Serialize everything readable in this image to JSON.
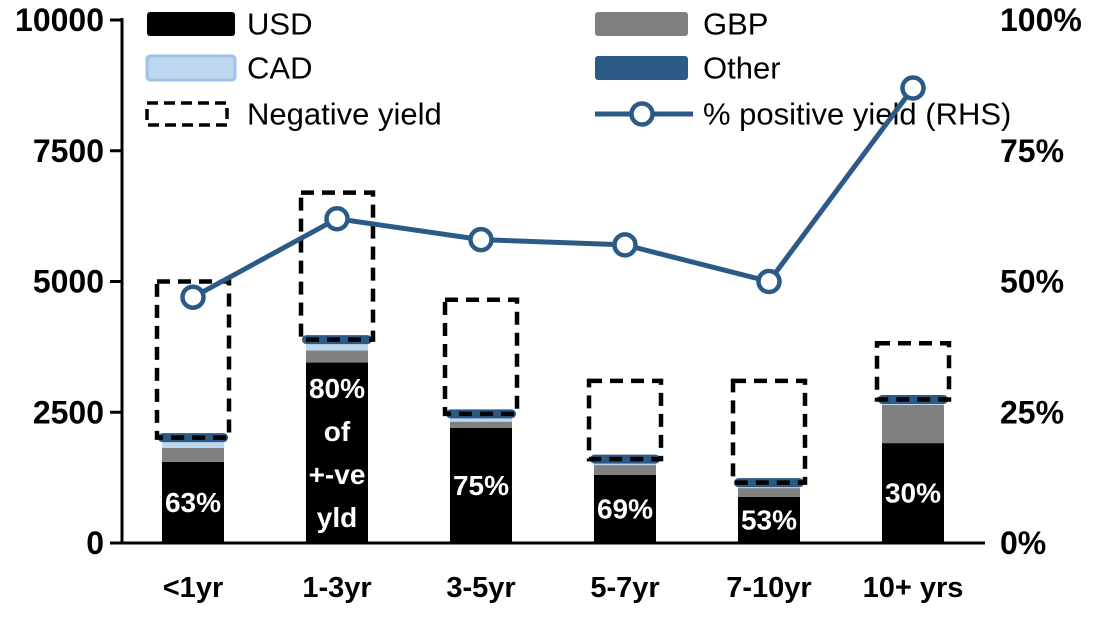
{
  "chart_data": {
    "type": "combo: stacked-bar + line",
    "background": "#FFFFFF",
    "categories": [
      "<1yr",
      "1-3yr",
      "3-5yr",
      "5-7yr",
      "7-10yr",
      "10+ yrs"
    ],
    "series": [
      {
        "name": "USD",
        "color": "#000000",
        "values": [
          1550,
          3450,
          2200,
          1300,
          880,
          1910
        ]
      },
      {
        "name": "GBP",
        "color": "#808080",
        "values": [
          270,
          230,
          120,
          190,
          170,
          730
        ]
      },
      {
        "name": "CAD",
        "color": "#BDD7EE",
        "border": "#9DC3E6",
        "values": [
          150,
          135,
          95,
          40,
          40,
          50
        ]
      },
      {
        "name": "Other",
        "color": "#2B5A87",
        "values": [
          130,
          160,
          140,
          160,
          150,
          140
        ]
      }
    ],
    "negative_yield": {
      "name": "Negative yield",
      "style": "dashed-outline",
      "color": "#000000",
      "totals_top": [
        5000,
        6700,
        4650,
        3100,
        3100,
        3820
      ]
    },
    "line": {
      "name": "% positive yield (RHS)",
      "color": "#2B5A87",
      "axis": "right",
      "marker": "open-circle",
      "values_pct": [
        47,
        62,
        58,
        57,
        50,
        87
      ]
    },
    "bar_labels": [
      [
        "63%"
      ],
      [
        "80%",
        "of",
        "+-ve",
        "yld"
      ],
      [
        "75%"
      ],
      [
        "69%"
      ],
      [
        "53%"
      ],
      [
        "30%"
      ]
    ],
    "left_axis": {
      "range": [
        0,
        10000
      ],
      "tick_values": [
        0,
        2500,
        5000,
        7500,
        10000
      ],
      "tick_labels": [
        "0",
        "2500",
        "5000",
        "7500",
        "10000"
      ]
    },
    "right_axis": {
      "range": [
        0,
        100
      ],
      "tick_values": [
        0,
        25,
        50,
        75,
        100
      ],
      "tick_labels": [
        "0%",
        "25%",
        "50%",
        "75%",
        "100%"
      ]
    },
    "legend": [
      {
        "label": "USD",
        "swatch": "box",
        "color": "#000000"
      },
      {
        "label": "GBP",
        "swatch": "box",
        "color": "#808080"
      },
      {
        "label": "CAD",
        "swatch": "box",
        "color": "#BDD7EE",
        "border": "#9DC3E6"
      },
      {
        "label": "Other",
        "swatch": "box",
        "color": "#2B5A87"
      },
      {
        "label": "Negative yield",
        "swatch": "dashed-box",
        "color": "#000000"
      },
      {
        "label": "% positive yield (RHS)",
        "swatch": "line-marker",
        "color": "#2B5A87"
      }
    ],
    "grid": "off",
    "legend_position": "top, two columns"
  }
}
